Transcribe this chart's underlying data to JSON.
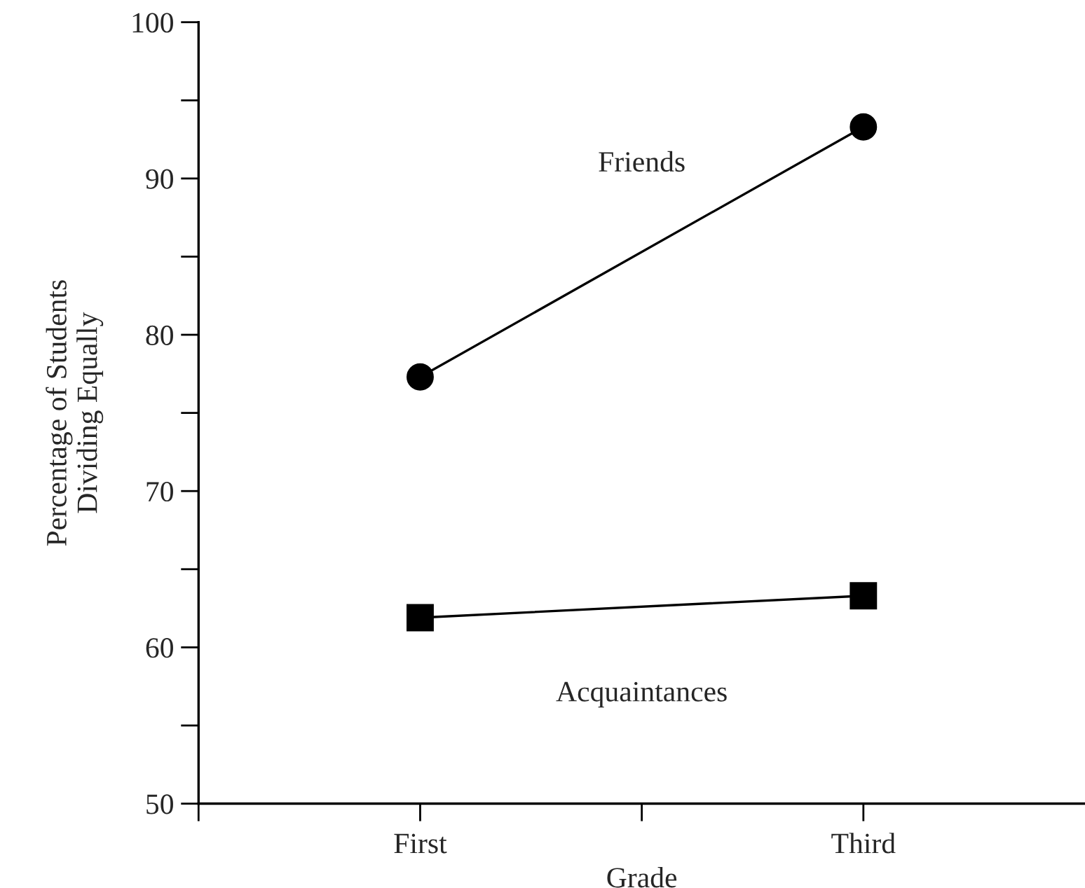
{
  "chart_data": {
    "type": "line",
    "xlabel": "Grade",
    "ylabel": "Percentage of Students\nDividing Equally",
    "categories": [
      "First",
      null,
      "Third"
    ],
    "series": [
      {
        "name": "Friends",
        "color": "#000000",
        "marker": "circle",
        "values": [
          77.3,
          null,
          93.3
        ]
      },
      {
        "name": "Acquaintances",
        "color": "#000000",
        "marker": "square",
        "values": [
          61.9,
          null,
          63.3
        ]
      }
    ],
    "ylim": [
      50,
      100
    ],
    "yticks": [
      50,
      {
        "value": 55,
        "label": null
      },
      60,
      {
        "value": 65,
        "label": null
      },
      70,
      {
        "value": 75,
        "label": null
      },
      80,
      {
        "value": 85,
        "label": null
      },
      90,
      {
        "value": 95,
        "label": null
      },
      100
    ],
    "grid": false,
    "legend": false,
    "line_style": "solid"
  }
}
